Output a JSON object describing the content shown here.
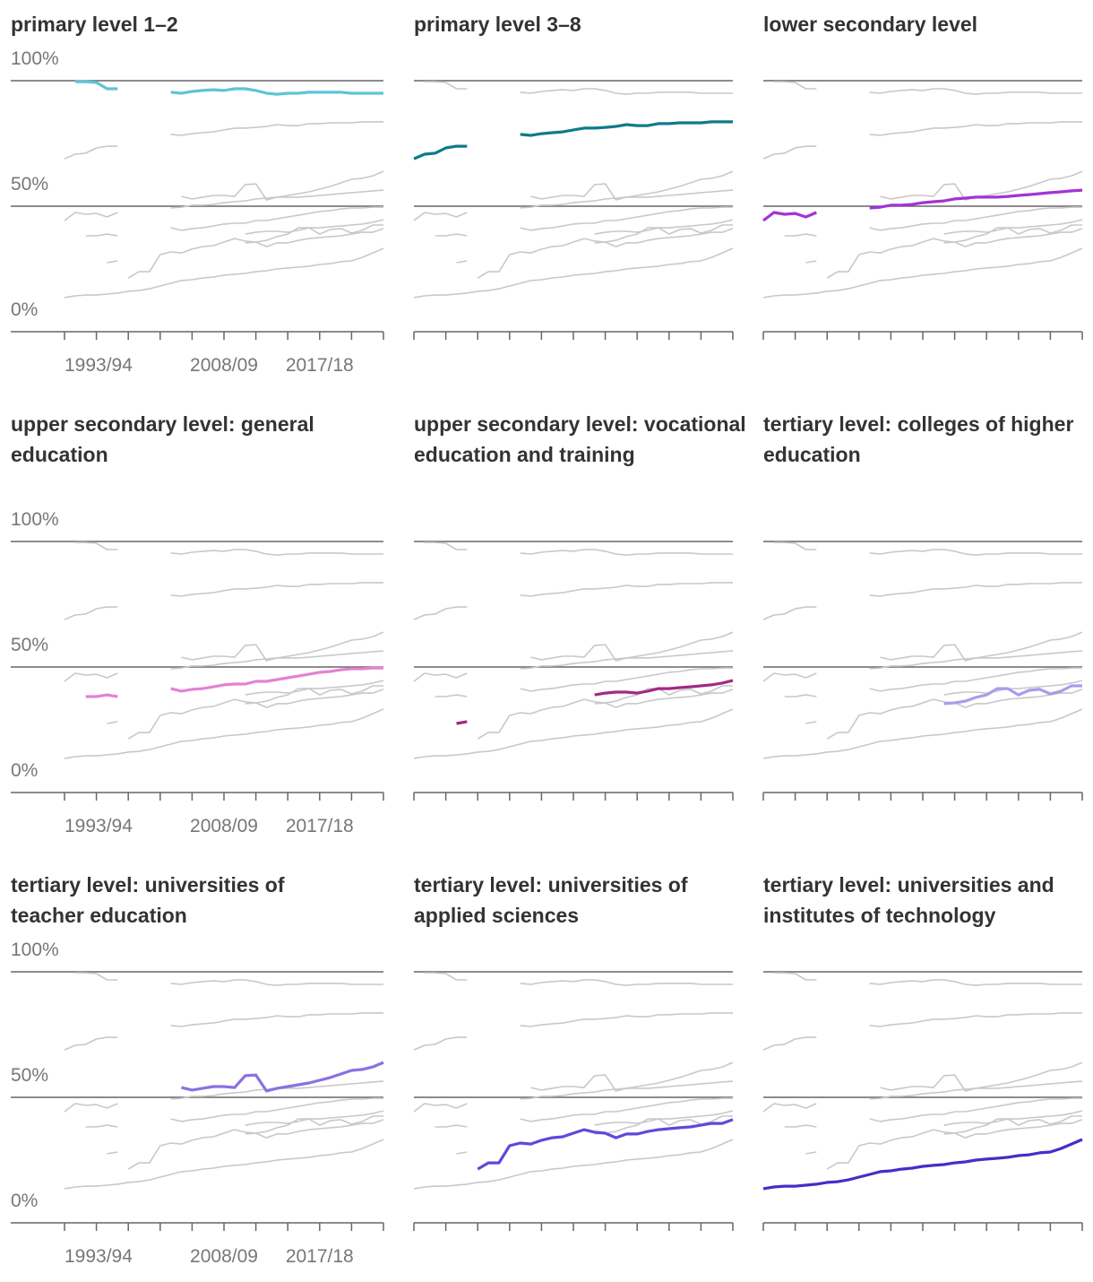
{
  "chart_data": {
    "type": "small_multiples_line",
    "x": [
      1993,
      1994,
      1995,
      1996,
      1997,
      1998,
      1999,
      2000,
      2001,
      2002,
      2003,
      2004,
      2005,
      2006,
      2007,
      2008,
      2009,
      2010,
      2011,
      2012,
      2013,
      2014,
      2015,
      2016,
      2017,
      2018,
      2019,
      2020,
      2021,
      2022,
      2023
    ],
    "xlim": [
      1993,
      2023
    ],
    "xticks": [
      {
        "value": 1993,
        "label": "1993/94"
      },
      {
        "value": 1996,
        "label": null
      },
      {
        "value": 1999,
        "label": null
      },
      {
        "value": 2002,
        "label": null
      },
      {
        "value": 2005,
        "label": null
      },
      {
        "value": 2008,
        "label": "2008/09"
      },
      {
        "value": 2011,
        "label": null
      },
      {
        "value": 2014,
        "label": null
      },
      {
        "value": 2017,
        "label": "2017/18"
      },
      {
        "value": 2020,
        "label": null
      },
      {
        "value": 2023,
        "label": null
      }
    ],
    "ylim": [
      0,
      100
    ],
    "yticks": [
      {
        "value": 0,
        "label": "0%"
      },
      {
        "value": 50,
        "label": "50%"
      },
      {
        "value": 100,
        "label": "100%"
      }
    ],
    "grid": true,
    "context_color": "#c8c8c8",
    "series": [
      {
        "name": "primary level 1–2",
        "color": "#5ec4d6",
        "values": [
          null,
          99.6,
          99.6,
          99.3,
          96.8,
          96.8,
          null,
          null,
          null,
          null,
          95.4,
          95,
          95.7,
          96.1,
          96.4,
          96.1,
          96.8,
          96.8,
          96.1,
          95,
          94.6,
          95,
          95,
          95.4,
          95.4,
          95.4,
          95.4,
          95,
          95,
          95,
          95
        ]
      },
      {
        "name": "primary level 3–8",
        "color": "#0e7b8a",
        "values": [
          68.9,
          70.7,
          71.1,
          73.2,
          73.9,
          73.9,
          null,
          null,
          null,
          null,
          78.6,
          78.2,
          78.9,
          79.3,
          79.6,
          80.4,
          81.1,
          81.1,
          81.4,
          81.8,
          82.5,
          82.1,
          82.1,
          82.9,
          82.9,
          83.2,
          83.2,
          83.2,
          83.6,
          83.6,
          83.6
        ]
      },
      {
        "name": "lower secondary level",
        "color": "#a034d6",
        "values": [
          44.3,
          47.5,
          46.8,
          47.1,
          45.7,
          47.5,
          null,
          null,
          null,
          null,
          49.3,
          49.6,
          50.4,
          50.4,
          50.7,
          51.4,
          51.8,
          52.1,
          52.9,
          53.2,
          53.6,
          53.6,
          53.6,
          53.9,
          54.3,
          54.6,
          55,
          55.4,
          55.7,
          56.1,
          56.4
        ]
      },
      {
        "name": "upper secondary level: general education",
        "color": "#e382d3",
        "values": [
          null,
          null,
          38.2,
          38.2,
          38.9,
          38.2,
          null,
          null,
          null,
          null,
          41.4,
          40.4,
          41.1,
          41.4,
          42.1,
          42.9,
          43.2,
          43.2,
          44.3,
          44.3,
          45,
          45.7,
          46.4,
          47.1,
          47.9,
          48.2,
          48.9,
          49.3,
          49.3,
          49.6,
          49.6
        ]
      },
      {
        "name": "upper secondary level: vocational education and training",
        "color": "#a22a84",
        "values": [
          null,
          null,
          null,
          null,
          27.5,
          28.2,
          null,
          null,
          null,
          null,
          null,
          null,
          null,
          null,
          null,
          null,
          null,
          38.9,
          39.6,
          40,
          40,
          39.6,
          40.4,
          41.4,
          41.4,
          41.8,
          42.1,
          42.5,
          42.9,
          43.6,
          44.6
        ]
      },
      {
        "name": "tertiary level: colleges of higher education",
        "color": "#aa9ceb",
        "values": [
          null,
          null,
          null,
          null,
          null,
          null,
          null,
          null,
          null,
          null,
          null,
          null,
          null,
          null,
          null,
          null,
          null,
          35.4,
          35.7,
          36.4,
          37.9,
          38.9,
          41.4,
          41.4,
          38.9,
          40.7,
          41.1,
          39.3,
          40.4,
          42.5,
          42.5
        ]
      },
      {
        "name": "tertiary level: universities of teacher education",
        "color": "#8b70e2",
        "values": [
          null,
          null,
          null,
          null,
          null,
          null,
          null,
          null,
          null,
          null,
          null,
          53.9,
          52.9,
          53.6,
          54.3,
          54.3,
          53.9,
          58.6,
          58.9,
          52.5,
          53.6,
          54.3,
          55,
          55.7,
          56.8,
          57.9,
          59.3,
          60.7,
          61.1,
          62.1,
          63.9
        ]
      },
      {
        "name": "tertiary level: universities of applied sciences",
        "color": "#5f49d8",
        "values": [
          null,
          null,
          null,
          null,
          null,
          null,
          21.4,
          23.9,
          23.9,
          30.7,
          31.8,
          31.4,
          32.9,
          33.9,
          34.3,
          35.7,
          37.1,
          36.1,
          35.7,
          33.9,
          35.4,
          35.4,
          36.4,
          37.1,
          37.5,
          37.9,
          38.2,
          38.9,
          39.6,
          39.6,
          41.1
        ]
      },
      {
        "name": "tertiary level: universities and institutes of technology",
        "color": "#4a2bc8",
        "values": [
          13.6,
          14.3,
          14.6,
          14.6,
          15,
          15.4,
          16.1,
          16.4,
          17.1,
          18.2,
          19.3,
          20.4,
          20.7,
          21.4,
          21.8,
          22.5,
          22.9,
          23.2,
          23.9,
          24.3,
          25,
          25.4,
          25.7,
          26.1,
          26.8,
          27.1,
          27.9,
          28.2,
          29.6,
          31.4,
          33.2
        ]
      }
    ]
  }
}
